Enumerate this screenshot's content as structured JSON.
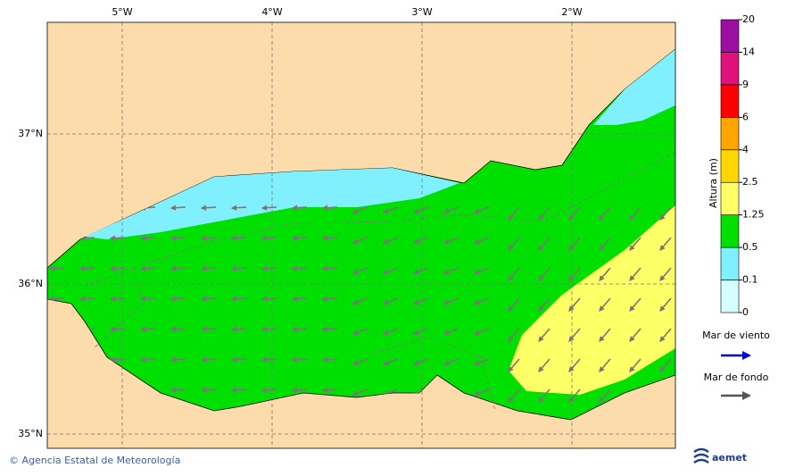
{
  "map": {
    "lon_labels": [
      "5°W",
      "4°W",
      "3°W",
      "2°W"
    ],
    "lat_labels": [
      "37°N",
      "36°N",
      "35°N"
    ]
  },
  "colorbar": {
    "title": "Altura (m)",
    "ticks": [
      0,
      0.1,
      0.5,
      1.25,
      2.5,
      4,
      6,
      9,
      14,
      20
    ],
    "colors": [
      "#d4ffff",
      "#80f0ff",
      "#00e000",
      "#ffff66",
      "#ffd700",
      "#ffa500",
      "#ff0000",
      "#e0107a",
      "#9c0fa0"
    ]
  },
  "legend": {
    "items": [
      {
        "label": "Mar de viento",
        "color": "#0000dd"
      },
      {
        "label": "Mar de fondo",
        "color": "#555555"
      }
    ]
  },
  "footer": {
    "credit": "© Agencia Estatal de Meteorología",
    "logo": "aemet"
  }
}
